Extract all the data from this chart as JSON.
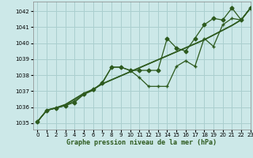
{
  "title": "Graphe pression niveau de la mer (hPa)",
  "background_color": "#cce8e8",
  "grid_color": "#aacfcf",
  "line_color": "#2d5a1e",
  "xlim": [
    -0.5,
    23
  ],
  "ylim": [
    1034.6,
    1042.6
  ],
  "yticks": [
    1035,
    1036,
    1037,
    1038,
    1039,
    1040,
    1041,
    1042
  ],
  "xticks": [
    0,
    1,
    2,
    3,
    4,
    5,
    6,
    7,
    8,
    9,
    10,
    11,
    12,
    13,
    14,
    15,
    16,
    17,
    18,
    19,
    20,
    21,
    22,
    23
  ],
  "series": [
    {
      "x": [
        0,
        1,
        2,
        3,
        4,
        5,
        6,
        7,
        8,
        9,
        10,
        11,
        12,
        13,
        14,
        15,
        16,
        17,
        18,
        19,
        20,
        21,
        22,
        23
      ],
      "y": [
        1035.1,
        1035.8,
        1035.95,
        1036.15,
        1036.5,
        1036.85,
        1037.1,
        1037.45,
        1037.7,
        1037.95,
        1038.2,
        1038.45,
        1038.7,
        1038.95,
        1039.2,
        1039.45,
        1039.7,
        1039.95,
        1040.2,
        1040.5,
        1040.8,
        1041.1,
        1041.45,
        1042.2
      ],
      "marker": null,
      "linestyle": "-",
      "linewidth": 1.0,
      "zorder": 2
    },
    {
      "x": [
        0,
        1,
        2,
        3,
        4,
        5,
        6,
        7,
        8,
        9,
        10,
        11,
        12,
        13,
        14,
        15,
        16,
        17,
        18,
        19,
        20,
        21,
        22,
        23
      ],
      "y": [
        1035.1,
        1035.82,
        1035.97,
        1036.17,
        1036.52,
        1036.87,
        1037.12,
        1037.47,
        1037.72,
        1037.97,
        1038.22,
        1038.47,
        1038.72,
        1038.97,
        1039.22,
        1039.47,
        1039.72,
        1039.97,
        1040.22,
        1040.52,
        1040.82,
        1041.12,
        1041.47,
        1042.2
      ],
      "marker": null,
      "linestyle": "-",
      "linewidth": 1.0,
      "zorder": 2
    },
    {
      "x": [
        0,
        1,
        2,
        3,
        4,
        5,
        6,
        7,
        8,
        9,
        10,
        11,
        12,
        13,
        14,
        15,
        16,
        17,
        18,
        19,
        20,
        21,
        22,
        23
      ],
      "y": [
        1035.1,
        1035.8,
        1035.95,
        1036.1,
        1036.4,
        1036.8,
        1037.05,
        1037.55,
        1038.5,
        1038.5,
        1038.3,
        1037.85,
        1037.3,
        1037.3,
        1037.3,
        1038.55,
        1038.9,
        1038.55,
        1040.3,
        1039.8,
        1041.15,
        1041.55,
        1041.45,
        1042.2
      ],
      "marker": "+",
      "linestyle": "-",
      "linewidth": 0.9,
      "zorder": 3
    },
    {
      "x": [
        0,
        1,
        2,
        3,
        4,
        5,
        6,
        7,
        8,
        9,
        10,
        11,
        12,
        13,
        14,
        15,
        16,
        17,
        18,
        19,
        20,
        21,
        22,
        23
      ],
      "y": [
        1035.1,
        1035.8,
        1035.95,
        1036.1,
        1036.3,
        1036.8,
        1037.1,
        1037.5,
        1038.5,
        1038.5,
        1038.3,
        1038.3,
        1038.3,
        1038.3,
        1040.3,
        1039.7,
        1039.5,
        1040.3,
        1041.15,
        1041.55,
        1041.45,
        1042.2,
        1041.45,
        1042.2
      ],
      "marker": "D",
      "linestyle": "-",
      "linewidth": 0.9,
      "markersize": 2.5,
      "zorder": 4
    }
  ]
}
